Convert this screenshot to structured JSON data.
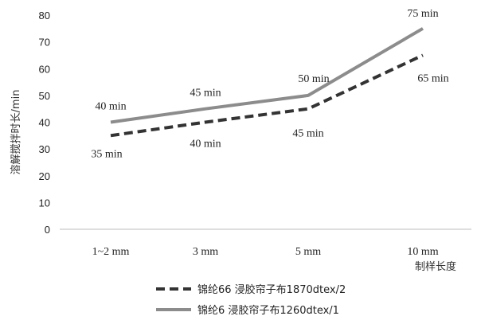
{
  "chart_data": {
    "type": "line",
    "categories": [
      "1~2 mm",
      "3 mm",
      "5 mm",
      "10 mm"
    ],
    "ylabel": "溶解搅拌时长/min",
    "xlabel": "制样长度",
    "ylim": [
      0,
      80
    ],
    "yticks": [
      "0",
      "10",
      "20",
      "30",
      "40",
      "50",
      "60",
      "70",
      "80"
    ],
    "grid": false,
    "legend_position": "bottom",
    "series": [
      {
        "name": "锦纶66  浸胶帘子布1870dtex/2",
        "style": "dashed",
        "color": "#333333",
        "values": [
          35,
          40,
          45,
          65
        ],
        "labels": [
          "35 min",
          "40 min",
          "45 min",
          "65 min"
        ]
      },
      {
        "name": "锦纶6  浸胶帘子布1260dtex/1",
        "style": "solid",
        "color": "#8c8c8c",
        "values": [
          40,
          45,
          50,
          75
        ],
        "labels": [
          "40 min",
          "45 min",
          "50 min",
          "75 min"
        ]
      }
    ]
  }
}
